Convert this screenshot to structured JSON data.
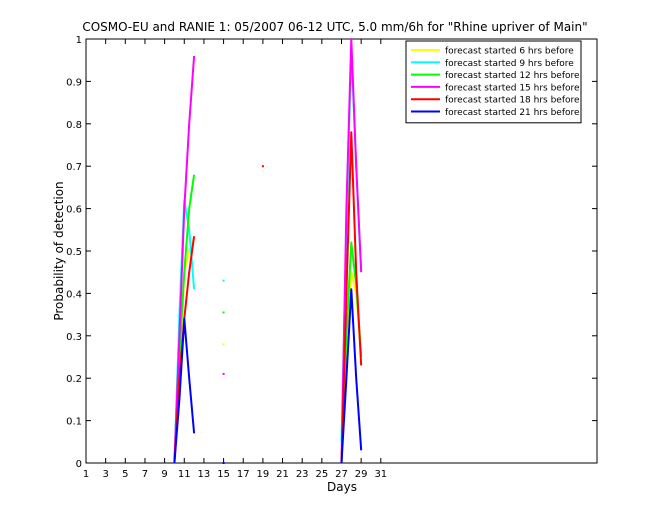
{
  "chart_data": {
    "type": "line",
    "title": "COSMO-EU and RANIE 1: 05/2007 06-12 UTC, 5.0 mm/6h for \"Rhine upriver of Main\"",
    "xlabel": "Days",
    "ylabel": "Probability of detection",
    "xlim": [
      1,
      53
    ],
    "ylim": [
      0,
      1
    ],
    "xticks": [
      1,
      3,
      5,
      7,
      9,
      11,
      13,
      15,
      17,
      19,
      21,
      23,
      25,
      27,
      29,
      31
    ],
    "yticks": [
      0,
      0.1,
      0.2,
      0.3,
      0.4,
      0.5,
      0.6,
      0.7,
      0.8,
      0.9,
      1
    ],
    "ytick_labels": [
      "0",
      "0.1",
      "0.2",
      "0.3",
      "0.4",
      "0.5",
      "0.6",
      "0.7",
      "0.8",
      "0.9",
      "1"
    ],
    "legend_position": "top-right",
    "series": [
      {
        "name": "forecast started 6 hrs before",
        "color": "#ffff00",
        "segments": [
          [
            [
              10,
              0.0
            ],
            [
              10.5,
              0.2
            ],
            [
              11,
              0.45
            ],
            [
              11.5,
              0.5
            ],
            [
              12,
              0.53
            ]
          ],
          [
            [
              27,
              0.0
            ],
            [
              27.5,
              0.3
            ],
            [
              28,
              0.45
            ],
            [
              28.5,
              0.4
            ],
            [
              29,
              0.25
            ]
          ]
        ],
        "points": [
          [
            15,
            0.28
          ]
        ]
      },
      {
        "name": "forecast started 9 hrs before",
        "color": "#00ffff",
        "segments": [
          [
            [
              10,
              0.0
            ],
            [
              10.5,
              0.35
            ],
            [
              11,
              0.62
            ],
            [
              11.5,
              0.55
            ],
            [
              12,
              0.41
            ]
          ],
          [
            [
              27,
              0.05
            ],
            [
              27.5,
              0.55
            ],
            [
              28,
              0.98
            ],
            [
              28.5,
              0.7
            ],
            [
              29,
              0.45
            ]
          ]
        ],
        "points": [
          [
            15,
            0.43
          ]
        ]
      },
      {
        "name": "forecast started 12 hrs before",
        "color": "#00ff00",
        "segments": [
          [
            [
              10,
              0.0
            ],
            [
              10.5,
              0.25
            ],
            [
              11,
              0.45
            ],
            [
              11.5,
              0.6
            ],
            [
              12,
              0.68
            ]
          ],
          [
            [
              27,
              0.0
            ],
            [
              27.5,
              0.3
            ],
            [
              28,
              0.52
            ],
            [
              28.5,
              0.42
            ],
            [
              29,
              0.25
            ]
          ]
        ],
        "points": [
          [
            15,
            0.355
          ]
        ]
      },
      {
        "name": "forecast started 15 hrs before",
        "color": "#ff00ff",
        "segments": [
          [
            [
              10,
              0.0
            ],
            [
              10.5,
              0.3
            ],
            [
              11,
              0.6
            ],
            [
              11.5,
              0.8
            ],
            [
              12,
              0.96
            ]
          ],
          [
            [
              27,
              0.0
            ],
            [
              27.5,
              0.6
            ],
            [
              28,
              1.0
            ],
            [
              28.5,
              0.7
            ],
            [
              29,
              0.45
            ]
          ]
        ],
        "points": [
          [
            15,
            0.21
          ]
        ]
      },
      {
        "name": "forecast started 18 hrs before",
        "color": "#ff0000",
        "segments": [
          [
            [
              10,
              0.0
            ],
            [
              10.5,
              0.2
            ],
            [
              11,
              0.34
            ],
            [
              11.5,
              0.45
            ],
            [
              12,
              0.535
            ]
          ],
          [
            [
              27,
              0.0
            ],
            [
              27.5,
              0.4
            ],
            [
              28,
              0.78
            ],
            [
              28.5,
              0.45
            ],
            [
              29,
              0.23
            ]
          ]
        ],
        "points": [
          [
            19,
            0.7
          ]
        ]
      },
      {
        "name": "forecast started 21 hrs before",
        "color": "#0000ff",
        "segments": [
          [
            [
              10,
              0.0
            ],
            [
              10.5,
              0.15
            ],
            [
              11,
              0.34
            ],
            [
              11.5,
              0.2
            ],
            [
              12,
              0.07
            ]
          ],
          [
            [
              27,
              0.0
            ],
            [
              27.5,
              0.2
            ],
            [
              28,
              0.41
            ],
            [
              28.5,
              0.2
            ],
            [
              29,
              0.03
            ]
          ]
        ],
        "points": [
          [
            15,
            0.0
          ]
        ]
      }
    ]
  }
}
